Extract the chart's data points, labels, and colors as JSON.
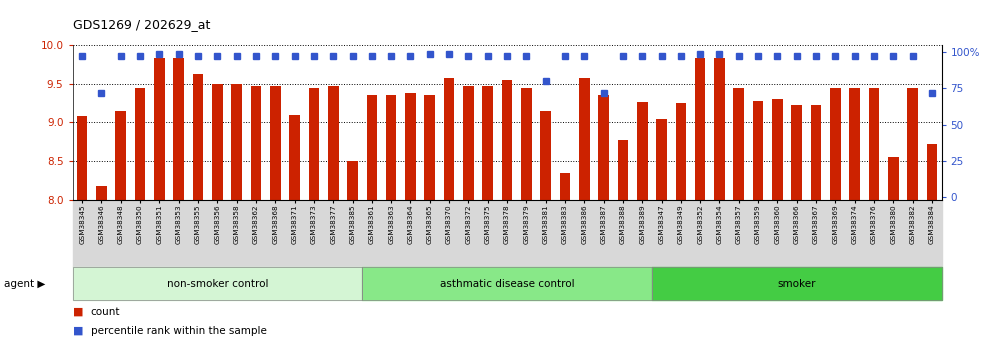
{
  "title": "GDS1269 / 202629_at",
  "samples": [
    "GSM38345",
    "GSM38346",
    "GSM38348",
    "GSM38350",
    "GSM38351",
    "GSM38353",
    "GSM38355",
    "GSM38356",
    "GSM38358",
    "GSM38362",
    "GSM38368",
    "GSM38371",
    "GSM38373",
    "GSM38377",
    "GSM38385",
    "GSM38361",
    "GSM38363",
    "GSM38364",
    "GSM38365",
    "GSM38370",
    "GSM38372",
    "GSM38375",
    "GSM38378",
    "GSM38379",
    "GSM38381",
    "GSM38383",
    "GSM38386",
    "GSM38387",
    "GSM38388",
    "GSM38389",
    "GSM38347",
    "GSM38349",
    "GSM38352",
    "GSM38354",
    "GSM38357",
    "GSM38359",
    "GSM38360",
    "GSM38366",
    "GSM38367",
    "GSM38369",
    "GSM38374",
    "GSM38376",
    "GSM38380",
    "GSM38382",
    "GSM38384"
  ],
  "bar_values": [
    9.08,
    8.18,
    9.15,
    9.44,
    9.83,
    9.83,
    9.62,
    9.5,
    9.5,
    9.47,
    9.47,
    9.1,
    9.45,
    9.47,
    8.5,
    9.35,
    9.35,
    9.38,
    9.35,
    9.57,
    9.47,
    9.47,
    9.55,
    9.45,
    9.15,
    8.35,
    9.57,
    9.35,
    8.78,
    9.27,
    9.05,
    9.25,
    9.83,
    9.83,
    9.45,
    9.28,
    9.3,
    9.23,
    9.23,
    9.45,
    9.45,
    9.45,
    8.55,
    9.45,
    8.72
  ],
  "blue_values": [
    97,
    72,
    97,
    97,
    99,
    99,
    97,
    97,
    97,
    97,
    97,
    97,
    97,
    97,
    97,
    97,
    97,
    97,
    99,
    99,
    97,
    97,
    97,
    97,
    80,
    97,
    97,
    72,
    97,
    97,
    97,
    97,
    99,
    99,
    97,
    97,
    97,
    97,
    97,
    97,
    97,
    97,
    97,
    97,
    72
  ],
  "groups": [
    {
      "label": "non-smoker control",
      "start": 0,
      "end": 15,
      "color": "#d4f5d4"
    },
    {
      "label": "asthmatic disease control",
      "start": 15,
      "end": 30,
      "color": "#88e888"
    },
    {
      "label": "smoker",
      "start": 30,
      "end": 45,
      "color": "#44cc44"
    }
  ],
  "ylim": [
    8.0,
    10.0
  ],
  "yticks": [
    8.0,
    8.5,
    9.0,
    9.5,
    10.0
  ],
  "y2ticks": [
    0,
    25,
    50,
    75,
    100
  ],
  "bar_color": "#cc2200",
  "blue_color": "#3355cc",
  "background_color": "#ffffff",
  "tick_bg_color": "#d8d8d8",
  "title_fontsize": 9,
  "bar_fontsize": 7.5,
  "tick_fontsize": 5.2,
  "legend_fontsize": 7.5
}
